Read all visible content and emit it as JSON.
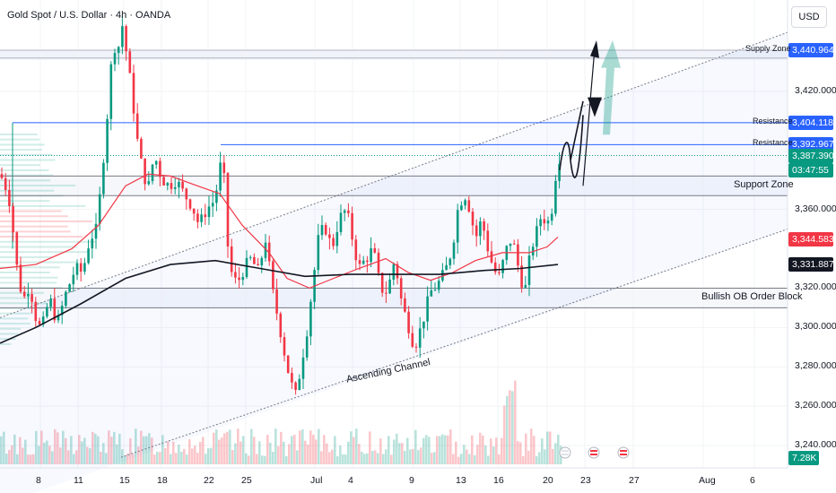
{
  "header": {
    "title": "Gold Spot / U.S. Dollar · 4h · OANDA",
    "currency": "USD"
  },
  "chart_data": {
    "type": "candlestick",
    "ylim": [
      3232,
      3472
    ],
    "y_ticks": [
      {
        "v": 3420,
        "label": "3,420.000"
      },
      {
        "v": 3360,
        "label": "3,360.000"
      },
      {
        "v": 3320,
        "label": "3,320.000"
      },
      {
        "v": 3300,
        "label": "3,300.000"
      },
      {
        "v": 3280,
        "label": "3,280.000"
      },
      {
        "v": 3260,
        "label": "3,260.000"
      },
      {
        "v": 3240,
        "label": "3,240.000"
      }
    ],
    "x_ticks": [
      "8",
      "11",
      "15",
      "18",
      "22",
      "25",
      "Jul",
      "4",
      "9",
      "13",
      "16",
      "20",
      "23",
      "27",
      "Aug",
      "6"
    ],
    "price_tags": [
      {
        "v": 3440.964,
        "label": "3,440.964",
        "bg": "#2962ff",
        "fg": "#ffffff"
      },
      {
        "v": 3404.118,
        "label": "3,404.118",
        "bg": "#2962ff",
        "fg": "#ffffff"
      },
      {
        "v": 3392.967,
        "label": "3,392.967",
        "bg": "#2962ff",
        "fg": "#ffffff"
      },
      {
        "v": 3387.39,
        "label": "3,387.390",
        "bg": "#089981",
        "fg": "#ffffff"
      },
      {
        "v": 3344.583,
        "label": "3,344.583",
        "bg": "#f23645",
        "fg": "#ffffff"
      },
      {
        "v": 3331.887,
        "label": "3,331.887",
        "bg": "#131722",
        "fg": "#ffffff"
      }
    ],
    "countdown": "03:47:55",
    "volume_label": "7.28K",
    "levels": [
      {
        "name": "Supply Zone",
        "v": 3440.964,
        "color": "#9598a1"
      },
      {
        "name": "Resistance",
        "v": 3404.118,
        "color": "#2962ff"
      },
      {
        "name": "Resistance",
        "v": 3392.967,
        "color": "#2962ff"
      },
      {
        "name": "Support Zone",
        "v": 3367,
        "color": "#9598a1"
      },
      {
        "name": "Bullish OB Order Block",
        "v": 3320,
        "color": "#9598a1"
      }
    ],
    "channel_label": "Ascending Channel",
    "colors": {
      "up": "#089981",
      "down": "#f23645",
      "ma_red": "#f23645",
      "ma_black": "#131722",
      "zone": "#e8ecf7"
    }
  }
}
